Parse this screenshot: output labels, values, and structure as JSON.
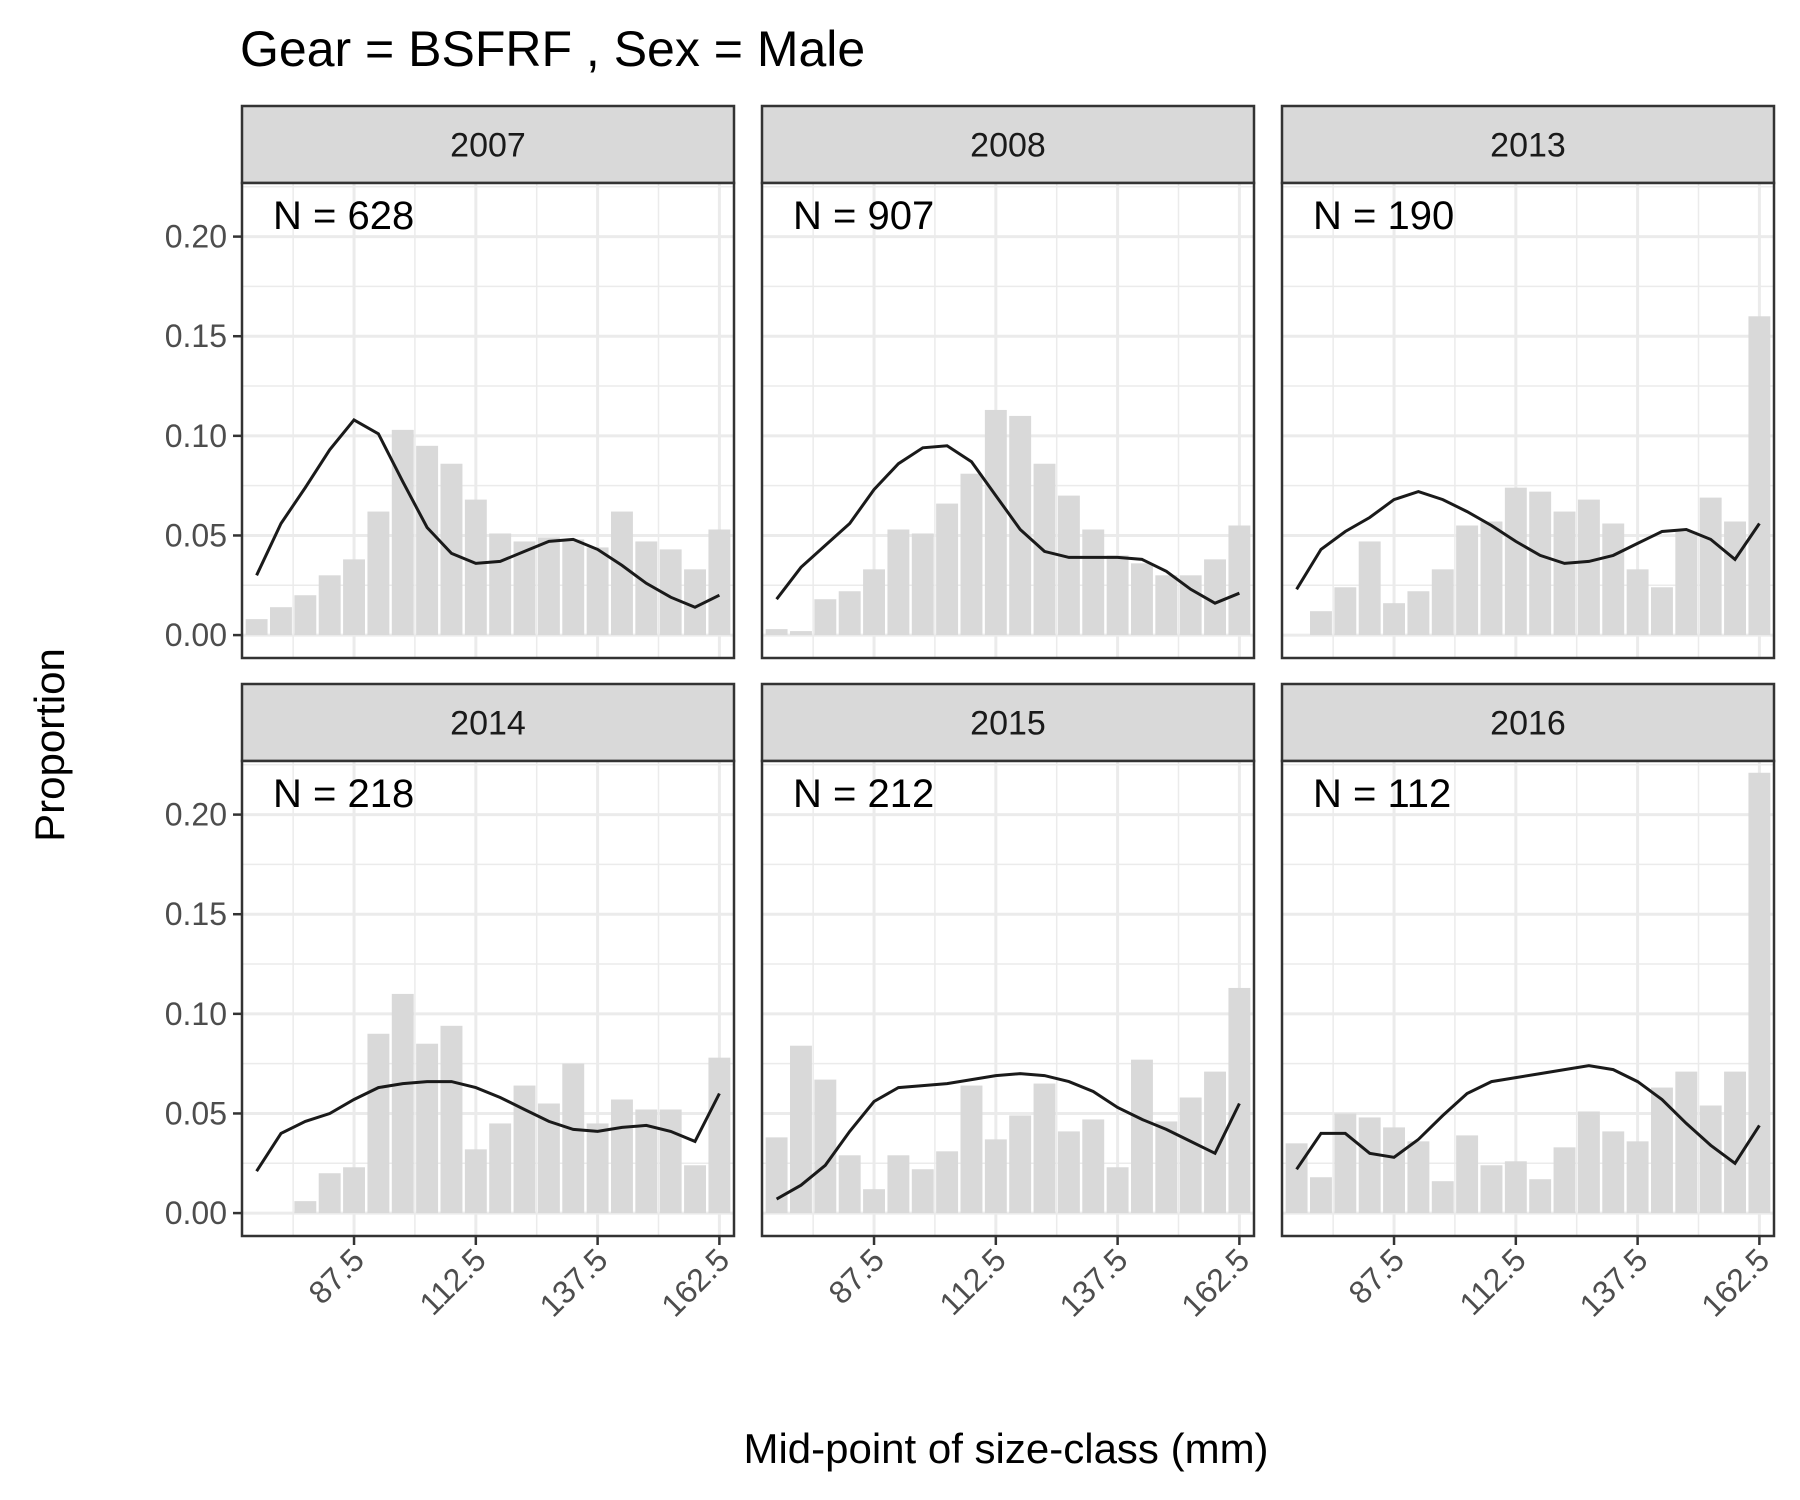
{
  "chart_data": {
    "type": "bar",
    "title": "Gear = BSFRF , Sex = Male",
    "xlabel": "Mid-point of size-class (mm)",
    "ylabel": "Proportion",
    "x": [
      67.5,
      72.5,
      77.5,
      82.5,
      87.5,
      92.5,
      97.5,
      102.5,
      107.5,
      112.5,
      117.5,
      122.5,
      127.5,
      132.5,
      137.5,
      142.5,
      147.5,
      152.5,
      157.5,
      162.5
    ],
    "xticks": [
      "87.5",
      "112.5",
      "137.5",
      "162.5"
    ],
    "xtick_values": [
      87.5,
      112.5,
      137.5,
      162.5
    ],
    "yticks": [
      "0.00",
      "0.05",
      "0.10",
      "0.15",
      "0.20"
    ],
    "ytick_values": [
      0,
      0.05,
      0.1,
      0.15,
      0.2
    ],
    "xlim": [
      64.5,
      165.5
    ],
    "ylim": [
      -0.0115,
      0.2269
    ],
    "grid": true,
    "bar_color": "#d9d9d9",
    "line_color": "#1a1a1a",
    "panels": [
      {
        "year": "2007",
        "n_label": "N = 628",
        "observed": [
          0.008,
          0.014,
          0.02,
          0.03,
          0.038,
          0.062,
          0.103,
          0.095,
          0.086,
          0.068,
          0.051,
          0.047,
          0.049,
          0.048,
          0.044,
          0.062,
          0.047,
          0.043,
          0.033,
          0.053
        ],
        "predicted": [
          0.03,
          0.056,
          0.074,
          0.093,
          0.108,
          0.101,
          0.077,
          0.054,
          0.041,
          0.036,
          0.037,
          0.042,
          0.047,
          0.048,
          0.043,
          0.035,
          0.026,
          0.019,
          0.014,
          0.02
        ]
      },
      {
        "year": "2008",
        "n_label": "N = 907",
        "observed": [
          0.003,
          0.002,
          0.018,
          0.022,
          0.033,
          0.053,
          0.051,
          0.066,
          0.081,
          0.113,
          0.11,
          0.086,
          0.07,
          0.053,
          0.04,
          0.036,
          0.03,
          0.03,
          0.038,
          0.055
        ],
        "predicted": [
          0.018,
          0.034,
          0.045,
          0.056,
          0.073,
          0.086,
          0.094,
          0.095,
          0.087,
          0.07,
          0.053,
          0.042,
          0.039,
          0.039,
          0.039,
          0.038,
          0.032,
          0.023,
          0.016,
          0.021
        ]
      },
      {
        "year": "2013",
        "n_label": "N = 190",
        "observed": [
          0.0,
          0.012,
          0.024,
          0.047,
          0.016,
          0.022,
          0.033,
          0.055,
          0.057,
          0.074,
          0.072,
          0.062,
          0.068,
          0.056,
          0.033,
          0.024,
          0.052,
          0.069,
          0.057,
          0.16
        ],
        "predicted": [
          0.023,
          0.043,
          0.052,
          0.059,
          0.068,
          0.072,
          0.068,
          0.062,
          0.055,
          0.047,
          0.04,
          0.036,
          0.037,
          0.04,
          0.046,
          0.052,
          0.053,
          0.048,
          0.038,
          0.056
        ]
      },
      {
        "year": "2014",
        "n_label": "N = 218",
        "observed": [
          0.0,
          0.0,
          0.006,
          0.02,
          0.023,
          0.09,
          0.11,
          0.085,
          0.094,
          0.032,
          0.045,
          0.064,
          0.055,
          0.075,
          0.045,
          0.057,
          0.052,
          0.052,
          0.024,
          0.078
        ],
        "predicted": [
          0.021,
          0.04,
          0.046,
          0.05,
          0.057,
          0.063,
          0.065,
          0.066,
          0.066,
          0.063,
          0.058,
          0.052,
          0.046,
          0.042,
          0.041,
          0.043,
          0.044,
          0.041,
          0.036,
          0.06
        ]
      },
      {
        "year": "2015",
        "n_label": "N = 212",
        "observed": [
          0.038,
          0.084,
          0.067,
          0.029,
          0.012,
          0.029,
          0.022,
          0.031,
          0.064,
          0.037,
          0.049,
          0.065,
          0.041,
          0.047,
          0.023,
          0.077,
          0.046,
          0.058,
          0.071,
          0.113
        ],
        "predicted": [
          0.007,
          0.014,
          0.024,
          0.041,
          0.056,
          0.063,
          0.064,
          0.065,
          0.067,
          0.069,
          0.07,
          0.069,
          0.066,
          0.061,
          0.053,
          0.047,
          0.042,
          0.036,
          0.03,
          0.055
        ]
      },
      {
        "year": "2016",
        "n_label": "N = 112",
        "observed": [
          0.035,
          0.018,
          0.05,
          0.048,
          0.043,
          0.036,
          0.016,
          0.039,
          0.024,
          0.026,
          0.017,
          0.033,
          0.051,
          0.041,
          0.036,
          0.063,
          0.071,
          0.054,
          0.071,
          0.221
        ],
        "predicted": [
          0.022,
          0.04,
          0.04,
          0.03,
          0.028,
          0.037,
          0.049,
          0.06,
          0.066,
          0.068,
          0.07,
          0.072,
          0.074,
          0.072,
          0.066,
          0.057,
          0.045,
          0.034,
          0.025,
          0.044
        ]
      }
    ]
  }
}
